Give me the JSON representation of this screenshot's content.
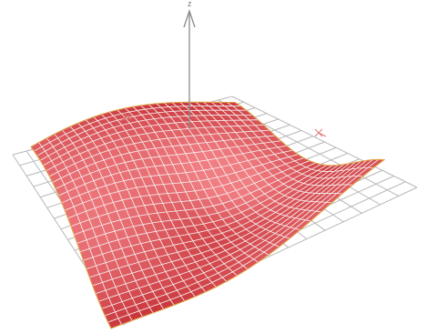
{
  "axis_label": "z"
}
